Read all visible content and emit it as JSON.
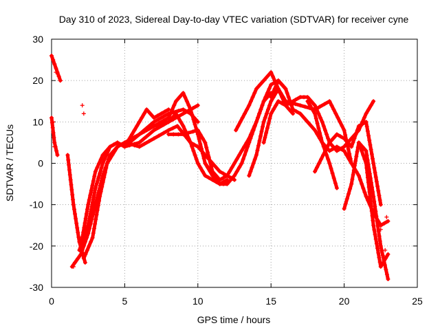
{
  "chart_data": {
    "type": "scatter",
    "title": "Day 310 of 2023, Sidereal Day-to-day VTEC variation (SDTVAR) for receiver cyne",
    "xlabel": "GPS time / hours",
    "ylabel": "SDTVAR / TECUs",
    "xlim": [
      0,
      25
    ],
    "ylim": [
      -30,
      30
    ],
    "xticks": [
      "0",
      "5",
      "10",
      "15",
      "20",
      "25"
    ],
    "yticks": [
      "-30",
      "-20",
      "-10",
      "0",
      "10",
      "20",
      "30"
    ],
    "grid": true,
    "marker": "+",
    "color": "#ff0000",
    "series": [
      {
        "name": "s1",
        "x": [
          0.0,
          0.3,
          0.6
        ],
        "y": [
          26,
          23,
          20
        ]
      },
      {
        "name": "s2",
        "x": [
          0.0,
          0.2,
          0.4
        ],
        "y": [
          11,
          5,
          2
        ]
      },
      {
        "name": "s3",
        "x": [
          1.1,
          1.5,
          1.9,
          2.3
        ],
        "y": [
          2,
          -10,
          -19,
          -24
        ]
      },
      {
        "name": "s4",
        "x": [
          1.4,
          2.0,
          2.5,
          3.0,
          3.5,
          4.0,
          4.5,
          5.0,
          6.0,
          7.0,
          8.0,
          9.0,
          9.5,
          10.0
        ],
        "y": [
          -25,
          -22,
          -17,
          -10,
          -3,
          2,
          4,
          5,
          7,
          10,
          12,
          13,
          12,
          10
        ]
      },
      {
        "name": "s5",
        "x": [
          1.9,
          2.5,
          3.0,
          3.5,
          4.0,
          4.5,
          5.0,
          6.0,
          7.0,
          8.0,
          9.0,
          10.0
        ],
        "y": [
          -21,
          -15,
          -6,
          0,
          4,
          5,
          4,
          5,
          8,
          10,
          12,
          14
        ]
      },
      {
        "name": "s6",
        "x": [
          2.0,
          2.5,
          3.0,
          3.5,
          4.0,
          4.5,
          5.0,
          6.0,
          7.0,
          8.0,
          8.5,
          9.0,
          9.5,
          10.0,
          10.5,
          11.0,
          11.5,
          12.0,
          12.5
        ],
        "y": [
          -20,
          -10,
          -2,
          2,
          4,
          5,
          4,
          7,
          9,
          10,
          12,
          9,
          5,
          4,
          2,
          0,
          -2,
          -3,
          -4
        ]
      },
      {
        "name": "s7",
        "x": [
          2.2,
          2.8,
          3.3,
          3.8,
          4.5,
          5.0,
          6.0,
          7.0,
          8.0,
          8.6,
          9.5,
          10.0,
          10.5,
          11.0,
          11.5,
          12.0
        ],
        "y": [
          -23,
          -18,
          -8,
          0,
          4,
          5,
          4,
          6,
          8,
          9,
          5,
          0,
          -3,
          -4,
          -5,
          -5
        ]
      },
      {
        "name": "s8",
        "x": [
          5.0,
          6.0,
          6.5,
          7.0,
          7.5,
          8.0
        ],
        "y": [
          4,
          10,
          13,
          11,
          12,
          13
        ]
      },
      {
        "name": "s9",
        "x": [
          6.5,
          7.0,
          8.0,
          8.5,
          9.0,
          9.5,
          10.0,
          10.5,
          11.0,
          11.5,
          12.0
        ],
        "y": [
          8,
          9,
          11,
          15,
          17,
          13,
          7,
          0,
          -3,
          -5,
          -4
        ]
      },
      {
        "name": "s10",
        "x": [
          8.0,
          9.0,
          10.0,
          10.5,
          11.0,
          11.5,
          12.0,
          12.5,
          13.0,
          13.5,
          14.0,
          14.5,
          15.0
        ],
        "y": [
          7,
          7,
          8,
          5,
          -2,
          -4,
          -3,
          0,
          3,
          6,
          10,
          15,
          17
        ]
      },
      {
        "name": "s11",
        "x": [
          10.5,
          11.5,
          12.0,
          12.5,
          13.0,
          13.5,
          14.0,
          14.5,
          15.0,
          15.5,
          16.0
        ],
        "y": [
          0,
          -5,
          -5,
          -3,
          0,
          5,
          10,
          15,
          19,
          20,
          18
        ]
      },
      {
        "name": "s12",
        "x": [
          12.6,
          13.5,
          14.0,
          14.5,
          15.0,
          15.5,
          16.0,
          16.5
        ],
        "y": [
          8,
          14,
          18,
          20,
          22,
          18,
          14,
          12
        ]
      },
      {
        "name": "s13",
        "x": [
          13.5,
          14.0,
          14.5,
          15.0,
          15.5,
          16.0,
          17.0,
          18.0,
          19.0,
          20.0,
          20.5
        ],
        "y": [
          -3,
          2,
          10,
          15,
          18,
          15,
          14,
          13,
          15,
          8,
          0
        ]
      },
      {
        "name": "s14",
        "x": [
          14.5,
          15.0,
          15.5,
          16.0,
          17.0,
          17.5,
          18.0,
          18.5,
          19.0,
          19.5,
          20.0,
          20.5,
          21.0,
          21.5,
          22.0
        ],
        "y": [
          5,
          12,
          15,
          14,
          16,
          16,
          14,
          10,
          5,
          3,
          4,
          6,
          8,
          12,
          15
        ]
      },
      {
        "name": "s15",
        "x": [
          15.0,
          15.5,
          16.0,
          16.5,
          17.0,
          17.5,
          18.0,
          18.5,
          19.0,
          19.5
        ],
        "y": [
          16,
          20,
          18,
          13,
          12,
          10,
          8,
          5,
          0,
          -6
        ]
      },
      {
        "name": "s16",
        "x": [
          17.5,
          18.0,
          18.5,
          19.0,
          19.5,
          20.0,
          20.5,
          21.0,
          21.5,
          22.0,
          22.5,
          23.0
        ],
        "y": [
          15,
          12,
          5,
          3,
          4,
          3,
          0,
          -3,
          -8,
          -12,
          -15,
          -14
        ]
      },
      {
        "name": "s17",
        "x": [
          18.0,
          19.0,
          19.5,
          20.0,
          20.5,
          21.0,
          21.5,
          22.0,
          22.5
        ],
        "y": [
          -2,
          5,
          7,
          6,
          4,
          9,
          10,
          0,
          -10
        ]
      },
      {
        "name": "s18",
        "x": [
          20.0,
          20.5,
          21.0,
          21.5,
          22.0,
          22.5,
          23.0
        ],
        "y": [
          -11,
          -5,
          5,
          3,
          -8,
          -20,
          -28
        ]
      },
      {
        "name": "s19",
        "x": [
          21.0,
          21.5,
          22.0,
          22.5,
          23.0
        ],
        "y": [
          5,
          0,
          -15,
          -25,
          -22
        ]
      }
    ],
    "clusters": [
      {
        "x": [
          0.0,
          0.1,
          0.2,
          0.3,
          0.5,
          0.6
        ],
        "y": [
          26,
          25,
          24,
          22,
          21,
          20
        ]
      },
      {
        "x": [
          2.1,
          2.2
        ],
        "y": [
          14,
          12
        ]
      },
      {
        "x": [
          0.1,
          0.2,
          0.4
        ],
        "y": [
          10,
          4,
          2
        ]
      },
      {
        "x": [
          1.5,
          1.6
        ],
        "y": [
          -25,
          -24
        ]
      },
      {
        "x": [
          22.3,
          22.5,
          22.8,
          22.9
        ],
        "y": [
          -14,
          -16,
          -21,
          -13
        ]
      }
    ]
  }
}
